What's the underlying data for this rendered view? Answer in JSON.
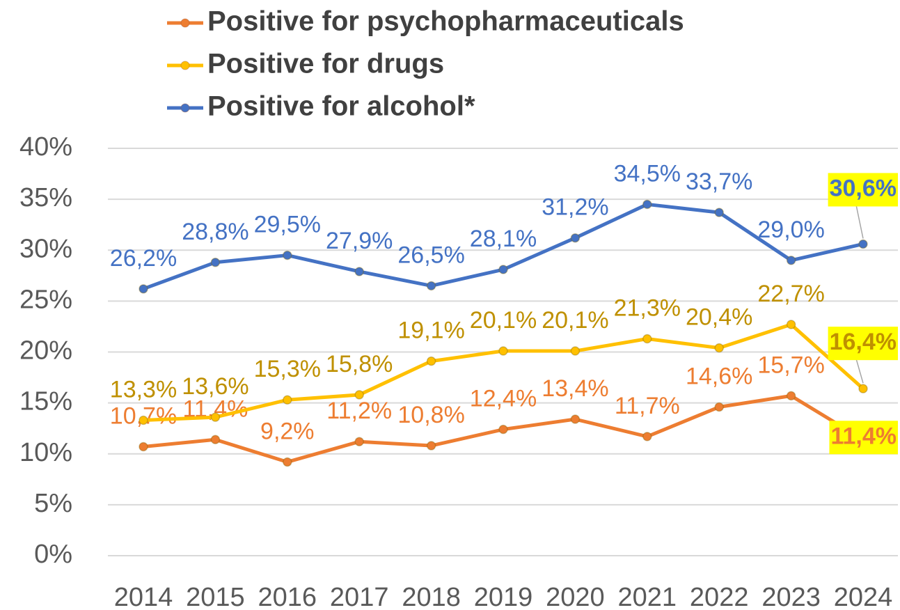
{
  "chart_data": {
    "type": "line",
    "categories": [
      "2014",
      "2015",
      "2016",
      "2017",
      "2018",
      "2019",
      "2020",
      "2021",
      "2022",
      "2023",
      "2024"
    ],
    "series": [
      {
        "name": "Positive for psychopharmaceuticals",
        "color": "#ed7d31",
        "label_color": "#ed7d31",
        "values": [
          10.7,
          11.4,
          9.2,
          11.2,
          10.8,
          12.4,
          13.4,
          11.7,
          14.6,
          15.7,
          11.4
        ],
        "value_labels": [
          "10,7%",
          "11,4%",
          "9,2%",
          "11,2%",
          "10,8%",
          "12,4%",
          "13,4%",
          "11,7%",
          "14,6%",
          "15,7%",
          "11,4%"
        ]
      },
      {
        "name": "Positive for drugs",
        "color": "#ffc000",
        "label_color": "#bf9000",
        "values": [
          13.3,
          13.6,
          15.3,
          15.8,
          19.1,
          20.1,
          20.1,
          21.3,
          20.4,
          22.7,
          16.4
        ],
        "value_labels": [
          "13,3%",
          "13,6%",
          "15,3%",
          "15,8%",
          "19,1%",
          "20,1%",
          "20,1%",
          "21,3%",
          "20,4%",
          "22,7%",
          "16,4%"
        ]
      },
      {
        "name": "Positive for alcohol*",
        "color": "#4472c4",
        "label_color": "#4472c4",
        "values": [
          26.2,
          28.8,
          29.5,
          27.9,
          26.5,
          28.1,
          31.2,
          34.5,
          33.7,
          29.0,
          30.6
        ],
        "value_labels": [
          "26,2%",
          "28,8%",
          "29,5%",
          "27,9%",
          "26,5%",
          "28,1%",
          "31,2%",
          "34,5%",
          "33,7%",
          "29,0%",
          "30,6%"
        ]
      }
    ],
    "ylim": [
      0,
      40
    ],
    "yticks": [
      {
        "value": 0,
        "label": "0%"
      },
      {
        "value": 5,
        "label": "5%"
      },
      {
        "value": 10,
        "label": "10%"
      },
      {
        "value": 15,
        "label": "15%"
      },
      {
        "value": 20,
        "label": "20%"
      },
      {
        "value": 25,
        "label": "25%"
      },
      {
        "value": 30,
        "label": "30%"
      },
      {
        "value": 35,
        "label": "35%"
      },
      {
        "value": 40,
        "label": "40%"
      }
    ],
    "grid": true,
    "legend": "top",
    "highlight_color": "#ffff00"
  }
}
